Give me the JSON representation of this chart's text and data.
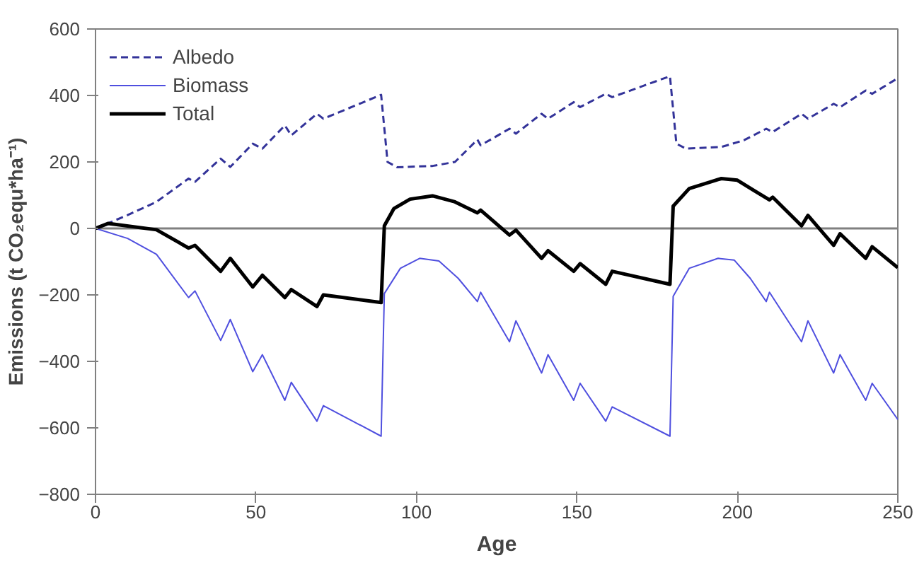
{
  "chart_data": {
    "type": "line",
    "xlabel": "Age",
    "ylabel": "Emissions (t CO₂equ*ha⁻¹)",
    "xlim": [
      0,
      250
    ],
    "ylim": [
      -800,
      600
    ],
    "xticks": [
      0,
      50,
      100,
      150,
      200,
      250
    ],
    "yticks": [
      -800,
      -600,
      -400,
      -200,
      0,
      200,
      400,
      600
    ],
    "grid": false,
    "legend": "top left",
    "ref_lines": [
      {
        "axis": "y",
        "value": 0,
        "color": "#808080"
      }
    ],
    "series": [
      {
        "name": "Albedo",
        "color": "#333399",
        "line_style": "dashed",
        "x": [
          0,
          10,
          19,
          29,
          31,
          39,
          42,
          49,
          52,
          59,
          61,
          69,
          71,
          89,
          91,
          94,
          105,
          112,
          119,
          120,
          129,
          131,
          139,
          141,
          149,
          151,
          159,
          161,
          179,
          181,
          184,
          195,
          202,
          209,
          211,
          220,
          222,
          230,
          232,
          240,
          242,
          250
        ],
        "values": [
          0,
          40,
          80,
          150,
          140,
          210,
          185,
          255,
          240,
          310,
          280,
          345,
          330,
          402,
          200,
          184,
          188,
          200,
          267,
          250,
          300,
          285,
          345,
          330,
          380,
          365,
          405,
          395,
          458,
          255,
          240,
          245,
          265,
          300,
          290,
          345,
          330,
          375,
          365,
          415,
          405,
          452
        ]
      },
      {
        "name": "Biomass",
        "color": "#4f4fdf",
        "line_style": "solid",
        "x": [
          0,
          10,
          19,
          29,
          31,
          39,
          42,
          49,
          52,
          59,
          61,
          69,
          71,
          89,
          90,
          95,
          101,
          107,
          113,
          119,
          120,
          129,
          131,
          139,
          141,
          149,
          151,
          159,
          161,
          179,
          180,
          185,
          194,
          199,
          204,
          209,
          210,
          220,
          222,
          230,
          232,
          240,
          242,
          250
        ],
        "values": [
          0,
          -30,
          -78,
          -208,
          -188,
          -337,
          -274,
          -431,
          -380,
          -517,
          -463,
          -580,
          -533,
          -625,
          -196,
          -120,
          -90,
          -98,
          -150,
          -220,
          -192,
          -341,
          -278,
          -435,
          -380,
          -517,
          -466,
          -580,
          -537,
          -625,
          -204,
          -120,
          -90,
          -95,
          -150,
          -220,
          -192,
          -341,
          -278,
          -435,
          -380,
          -517,
          -466,
          -575
        ]
      },
      {
        "name": "Total",
        "color": "#000000",
        "line_style": "solid",
        "x": [
          0,
          4,
          19,
          29,
          31,
          39,
          42,
          49,
          52,
          59,
          61,
          69,
          71,
          89,
          90,
          93,
          98,
          105,
          112,
          119,
          120,
          129,
          131,
          139,
          141,
          149,
          151,
          159,
          161,
          179,
          180,
          185,
          195,
          200,
          205,
          210,
          211,
          220,
          222,
          230,
          232,
          240,
          242,
          250
        ],
        "values": [
          0,
          15,
          -4,
          -59,
          -51,
          -129,
          -90,
          -176,
          -141,
          -208,
          -184,
          -235,
          -200,
          -223,
          8,
          60,
          88,
          98,
          80,
          47,
          55,
          -20,
          -5,
          -90,
          -67,
          -129,
          -106,
          -168,
          -129,
          -168,
          67,
          120,
          150,
          145,
          115,
          86,
          94,
          8,
          39,
          -51,
          -16,
          -90,
          -55,
          -118
        ]
      }
    ]
  }
}
